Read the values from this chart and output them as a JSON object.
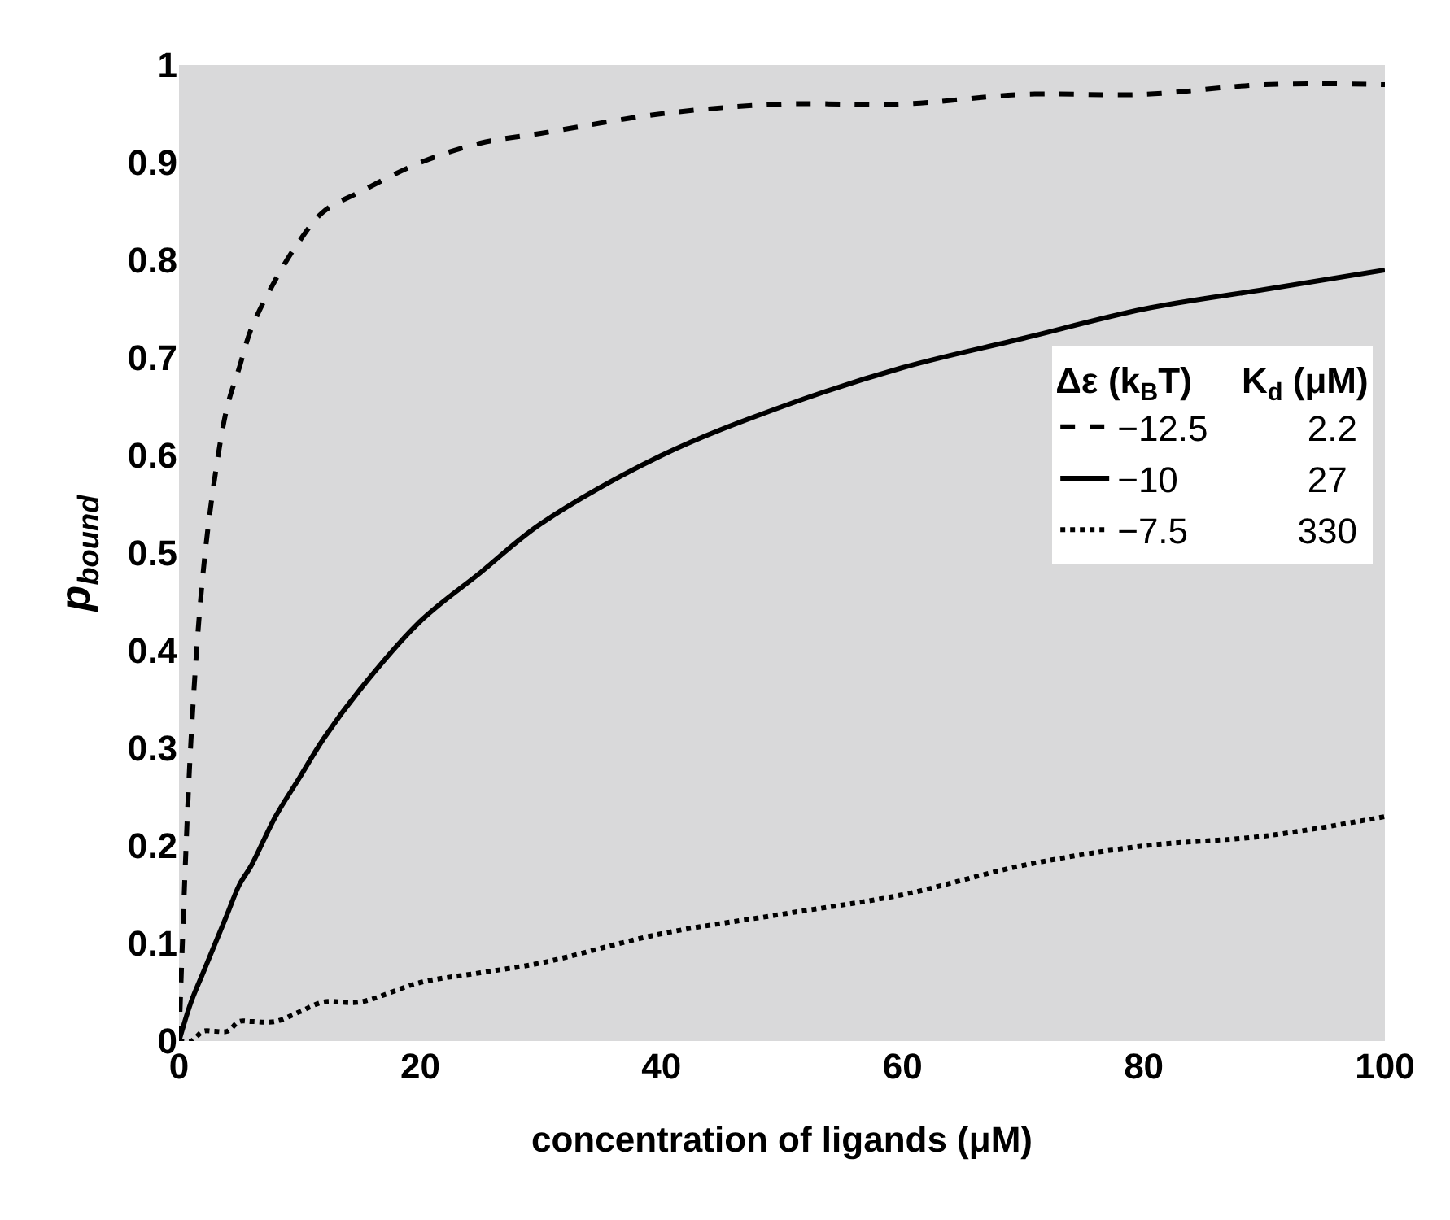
{
  "chart_data": {
    "type": "line",
    "xlabel": "concentration of ligands (μM)",
    "ylabel": "p$_{bound}$",
    "legend_title": "Δε (k$_{B}$T)     K$_{d}$ (μM)",
    "x": [
      0,
      1,
      2,
      3,
      4,
      5,
      6,
      8,
      10,
      12,
      15,
      20,
      25,
      30,
      40,
      50,
      60,
      70,
      80,
      90,
      100
    ],
    "series": [
      {
        "name": "−12.5          2.2",
        "color": "#000000",
        "line_style": "dashed",
        "values": [
          0,
          0.31,
          0.48,
          0.58,
          0.65,
          0.69,
          0.73,
          0.78,
          0.82,
          0.85,
          0.87,
          0.9,
          0.92,
          0.93,
          0.95,
          0.96,
          0.96,
          0.97,
          0.97,
          0.98,
          0.98
        ]
      },
      {
        "name": "−10             27",
        "color": "#000000",
        "line_style": "solid",
        "values": [
          0,
          0.04,
          0.07,
          0.1,
          0.13,
          0.16,
          0.18,
          0.23,
          0.27,
          0.31,
          0.36,
          0.43,
          0.48,
          0.53,
          0.6,
          0.65,
          0.69,
          0.72,
          0.75,
          0.77,
          0.79
        ]
      },
      {
        "name": "−7.5           330",
        "color": "#000000",
        "line_style": "dotted",
        "values": [
          0,
          0,
          0.01,
          0.01,
          0.01,
          0.02,
          0.02,
          0.02,
          0.03,
          0.04,
          0.04,
          0.06,
          0.07,
          0.08,
          0.11,
          0.13,
          0.15,
          0.18,
          0.2,
          0.21,
          0.23
        ]
      }
    ],
    "xlim": [
      0,
      100
    ],
    "xticks": [
      0,
      20,
      40,
      60,
      80,
      100
    ],
    "ylim": [
      0,
      1
    ],
    "yticks": [
      0,
      0.1,
      0.2,
      0.3,
      0.4,
      0.5,
      0.6,
      0.7,
      0.8,
      0.9,
      1
    ],
    "grid": false,
    "legend": "right",
    "marker": "none"
  }
}
